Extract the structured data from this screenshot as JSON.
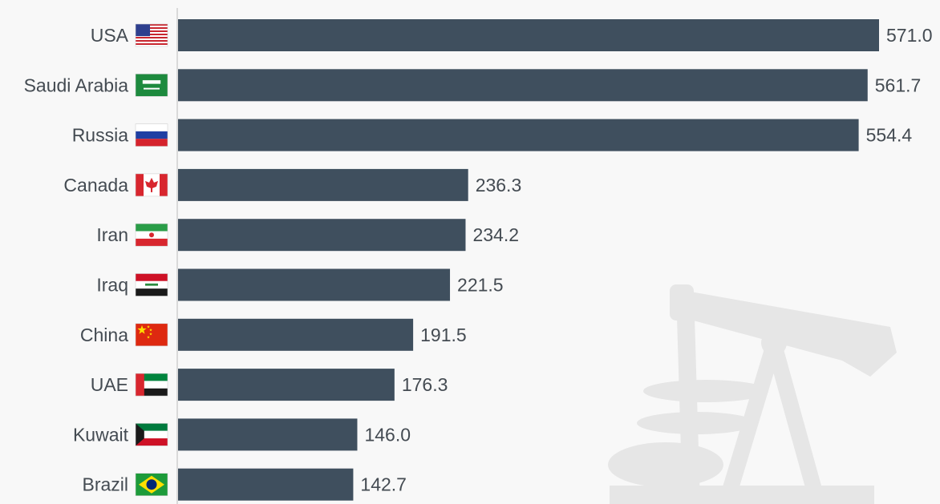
{
  "chart_data": {
    "type": "bar",
    "orientation": "horizontal",
    "categories": [
      "USA",
      "Saudi Arabia",
      "Russia",
      "Canada",
      "Iran",
      "Iraq",
      "China",
      "UAE",
      "Kuwait",
      "Brazil"
    ],
    "values": [
      571.0,
      561.7,
      554.4,
      236.3,
      234.2,
      221.5,
      191.5,
      176.3,
      146.0,
      142.7
    ],
    "value_labels": [
      "571.0",
      "561.7",
      "554.4",
      "236.3",
      "234.2",
      "221.5",
      "191.5",
      "176.3",
      "146.0",
      "142.7"
    ],
    "flag_icons": [
      "usa-flag-icon",
      "saudi-arabia-flag-icon",
      "russia-flag-icon",
      "canada-flag-icon",
      "iran-flag-icon",
      "iraq-flag-icon",
      "china-flag-icon",
      "uae-flag-icon",
      "kuwait-flag-icon",
      "brazil-flag-icon"
    ],
    "title": "",
    "xlabel": "",
    "ylabel": "",
    "xlim": [
      0,
      571.0
    ],
    "grid": false,
    "legend": "none",
    "colors": {
      "bar": "#3f4f5e",
      "background": "#f8f8f8",
      "text": "#444b52",
      "axis": "#cfcfcf",
      "watermark": "#e6e6e6"
    },
    "watermark_icon": "oil-pump-jack-icon"
  }
}
